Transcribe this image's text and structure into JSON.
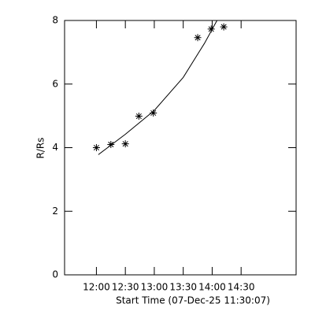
{
  "chart_data": {
    "type": "scatter",
    "x_label": "Start Time (07-Dec-25 11:30:07)",
    "y_label": "R/Rs",
    "series": [
      {
        "x": [
          720,
          735,
          750,
          764,
          779,
          825,
          839,
          852
        ],
        "values": [
          4.0,
          4.1,
          4.12,
          4.99,
          5.09,
          7.46,
          7.73,
          7.8
        ],
        "color": "#000000",
        "marker": "asterisk"
      },
      {
        "x": [
          722,
          750,
          780,
          810,
          832,
          845
        ],
        "values": [
          3.78,
          4.42,
          5.17,
          6.21,
          7.28,
          8.0
        ],
        "color": "#000000",
        "marker": "line"
      }
    ],
    "xlim": [
      687,
      927
    ],
    "ylim": [
      0,
      8
    ],
    "xticks": [
      {
        "value": 720,
        "label": "12:00"
      },
      {
        "value": 750,
        "label": "12:30"
      },
      {
        "value": 780,
        "label": "13:00"
      },
      {
        "value": 810,
        "label": "13:30"
      },
      {
        "value": 840,
        "label": "14:00"
      },
      {
        "value": 870,
        "label": "14:30"
      }
    ],
    "yticks": [
      0,
      2,
      4,
      6,
      8
    ]
  }
}
